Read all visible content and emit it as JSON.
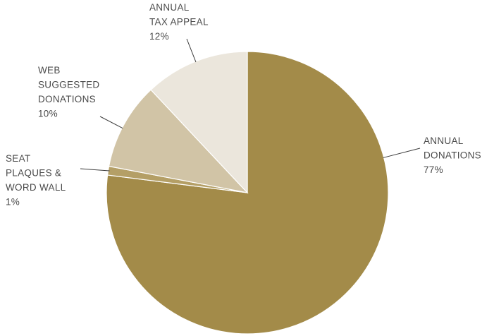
{
  "chart_data": {
    "type": "pie",
    "title": "",
    "start": "12 o'clock",
    "direction": "clockwise",
    "slices": [
      {
        "lines": [
          "ANNUAL",
          "DONATIONS"
        ],
        "pct_label": "77%",
        "value": 77,
        "color": "#a38b49"
      },
      {
        "lines": [
          "SEAT",
          "PLAQUES &",
          "WORD WALL"
        ],
        "pct_label": "1%",
        "value": 1,
        "color": "#b49f66"
      },
      {
        "lines": [
          "WEB",
          "SUGGESTED",
          "DONATIONS"
        ],
        "pct_label": "10%",
        "value": 10,
        "color": "#d1c4a6"
      },
      {
        "lines": [
          "ANNUAL",
          "TAX APPEAL"
        ],
        "pct_label": "12%",
        "value": 12,
        "color": "#ebe6dc"
      }
    ]
  }
}
